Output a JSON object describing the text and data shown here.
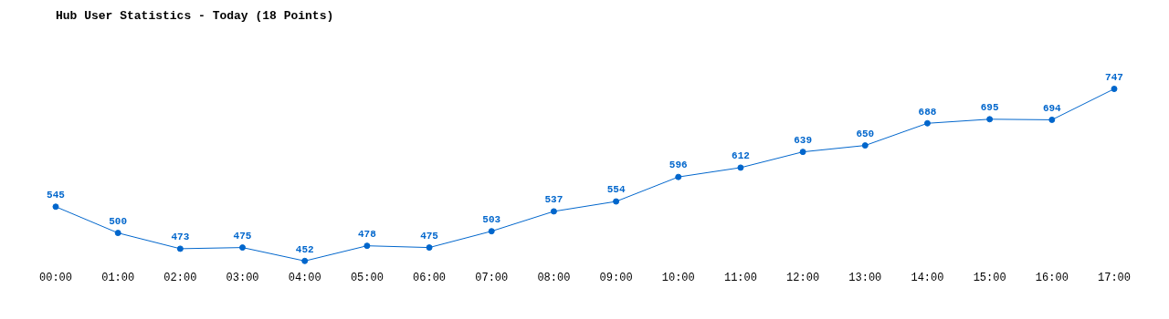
{
  "chart_data": {
    "type": "line",
    "title": "Hub User Statistics - Today (18 Points)",
    "categories": [
      "00:00",
      "01:00",
      "02:00",
      "03:00",
      "04:00",
      "05:00",
      "06:00",
      "07:00",
      "08:00",
      "09:00",
      "10:00",
      "11:00",
      "12:00",
      "13:00",
      "14:00",
      "15:00",
      "16:00",
      "17:00"
    ],
    "values": [
      545,
      500,
      473,
      475,
      452,
      478,
      475,
      503,
      537,
      554,
      596,
      612,
      639,
      650,
      688,
      695,
      694,
      747
    ],
    "color": "#0066cc",
    "data_labels": true,
    "grid": false,
    "legend": false,
    "marker": "circle",
    "line_style": "solid",
    "tick_labels": "x"
  }
}
